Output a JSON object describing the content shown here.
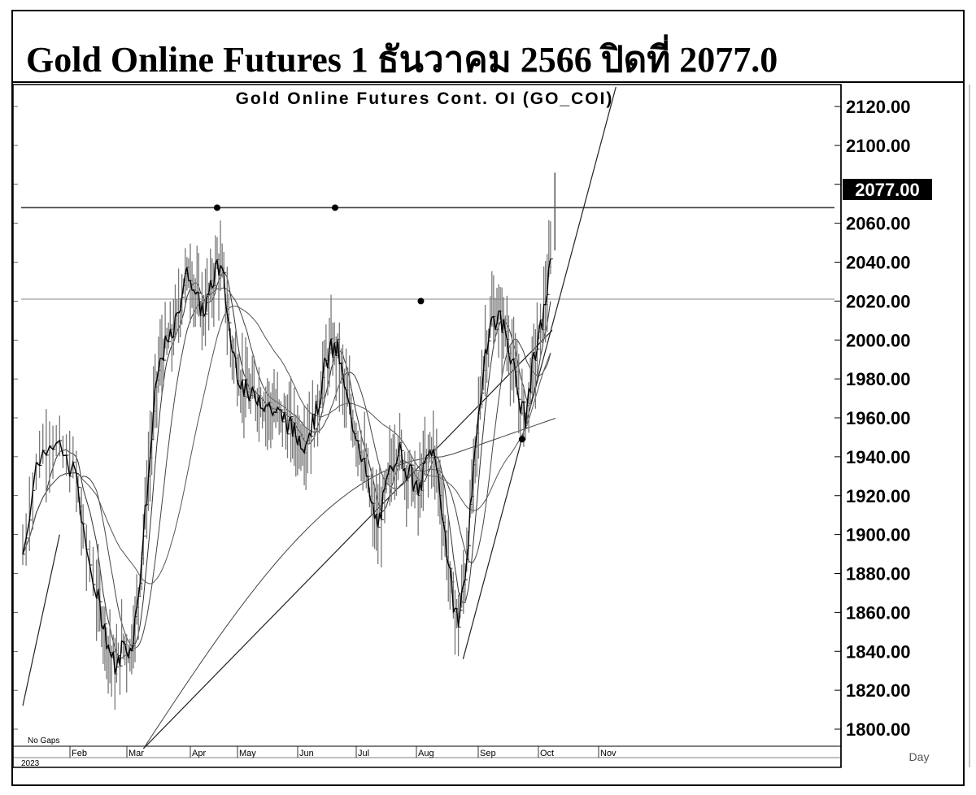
{
  "page": {
    "title": "Gold Online Futures 1 ธันวาคม 2566 ปิดที่ 2077.0"
  },
  "chart_data": {
    "type": "candlestick",
    "title": "Gold Online Futures Cont. OI (GO_COI)",
    "ylim": [
      1790,
      2130
    ],
    "yticks": [
      "2120.00",
      "2100.00",
      "2080.00",
      "2060.00",
      "2040.00",
      "2020.00",
      "2000.00",
      "1980.00",
      "1960.00",
      "1940.00",
      "1920.00",
      "1900.00",
      "1880.00",
      "1860.00",
      "1840.00",
      "1820.00",
      "1800.00"
    ],
    "xticks": [
      "Feb",
      "Mar",
      "Apr",
      "May",
      "Jun",
      "Jul",
      "Aug",
      "Sep",
      "Oct",
      "Nov"
    ],
    "year_label": "2023",
    "no_gaps_label": "No Gaps",
    "period_label": "Day",
    "last_price_label": "2077.00",
    "last_price": 2077,
    "resistance_lines": [
      2068,
      2021
    ],
    "marker_points": [
      {
        "x": 0.29,
        "y": 2068
      },
      {
        "x": 0.466,
        "y": 2068
      },
      {
        "x": 0.594,
        "y": 2020
      },
      {
        "x": 0.745,
        "y": 1949
      }
    ],
    "trendlines": [
      {
        "from": {
          "x": 0.18,
          "y": 1790
        },
        "to": {
          "x": 0.79,
          "y": 2005
        }
      },
      {
        "from": {
          "x": 0.657,
          "y": 1836
        },
        "to": {
          "x": 0.885,
          "y": 2130
        }
      },
      {
        "from": {
          "x": 0.0,
          "y": 1812
        },
        "to": {
          "x": 0.055,
          "y": 1900
        }
      }
    ],
    "series": [
      {
        "values_x": [
          0.0,
          0.02,
          0.04,
          0.06,
          0.08,
          0.09,
          0.11,
          0.12,
          0.13,
          0.14,
          0.15,
          0.16,
          0.17,
          0.18,
          0.19,
          0.2,
          0.21,
          0.22,
          0.23,
          0.24,
          0.25,
          0.26,
          0.27,
          0.28,
          0.29,
          0.3,
          0.31,
          0.32,
          0.33,
          0.34,
          0.35,
          0.36,
          0.37,
          0.38,
          0.39,
          0.4,
          0.41,
          0.42,
          0.43,
          0.44,
          0.45,
          0.46,
          0.47,
          0.48,
          0.49,
          0.5,
          0.51,
          0.52,
          0.53,
          0.54,
          0.55,
          0.56,
          0.57,
          0.58,
          0.59,
          0.6,
          0.61,
          0.62,
          0.63,
          0.64,
          0.65,
          0.66,
          0.67,
          0.68,
          0.69,
          0.7,
          0.71,
          0.72,
          0.73,
          0.74,
          0.75,
          0.76,
          0.77,
          0.78,
          0.79
        ],
        "values_y": [
          1890,
          1935,
          1950,
          1940,
          1930,
          1900,
          1870,
          1855,
          1840,
          1830,
          1845,
          1840,
          1860,
          1900,
          1940,
          1980,
          1995,
          2000,
          2010,
          2030,
          2035,
          2020,
          2015,
          2025,
          2040,
          2030,
          2000,
          1985,
          1975,
          1970,
          1972,
          1968,
          1965,
          1962,
          1960,
          1955,
          1950,
          1948,
          1955,
          1965,
          1985,
          1995,
          1995,
          1975,
          1960,
          1950,
          1935,
          1915,
          1905,
          1920,
          1935,
          1945,
          1935,
          1930,
          1920,
          1935,
          1945,
          1930,
          1900,
          1870,
          1855,
          1880,
          1920,
          1960,
          1995,
          2010,
          2012,
          2005,
          1990,
          1970,
          1960,
          1985,
          2000,
          2020,
          2045
        ]
      }
    ],
    "latest_spike": {
      "x": 0.794,
      "high": 2086,
      "low": 2046
    }
  }
}
